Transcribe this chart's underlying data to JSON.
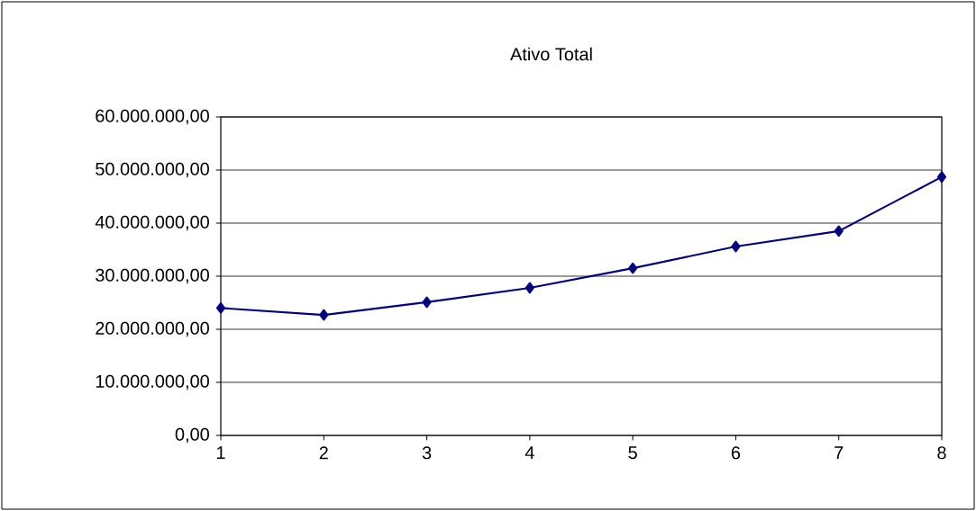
{
  "chart_data": {
    "type": "line",
    "title": "Ativo Total",
    "x": [
      1,
      2,
      3,
      4,
      5,
      6,
      7,
      8
    ],
    "series": [
      {
        "color": "#000080",
        "values": [
          24000000,
          22700000,
          25100000,
          27800000,
          31500000,
          35600000,
          38500000,
          48700000
        ]
      }
    ],
    "xlim": [
      1,
      8
    ],
    "xticks": [
      1,
      2,
      3,
      4,
      5,
      6,
      7,
      8
    ],
    "ylim": [
      0,
      60000000
    ],
    "yticks": [
      {
        "value": 0,
        "label": "0,00"
      },
      {
        "value": 10000000,
        "label": "10.000.000,00"
      },
      {
        "value": 20000000,
        "label": "20.000.000,00"
      },
      {
        "value": 30000000,
        "label": "30.000.000,00"
      },
      {
        "value": 40000000,
        "label": "40.000.000,00"
      },
      {
        "value": 50000000,
        "label": "50.000.000,00"
      },
      {
        "value": 60000000,
        "label": "60.000.000,00"
      }
    ],
    "grid": "y",
    "marker": "diamond",
    "line_style": "solid"
  }
}
